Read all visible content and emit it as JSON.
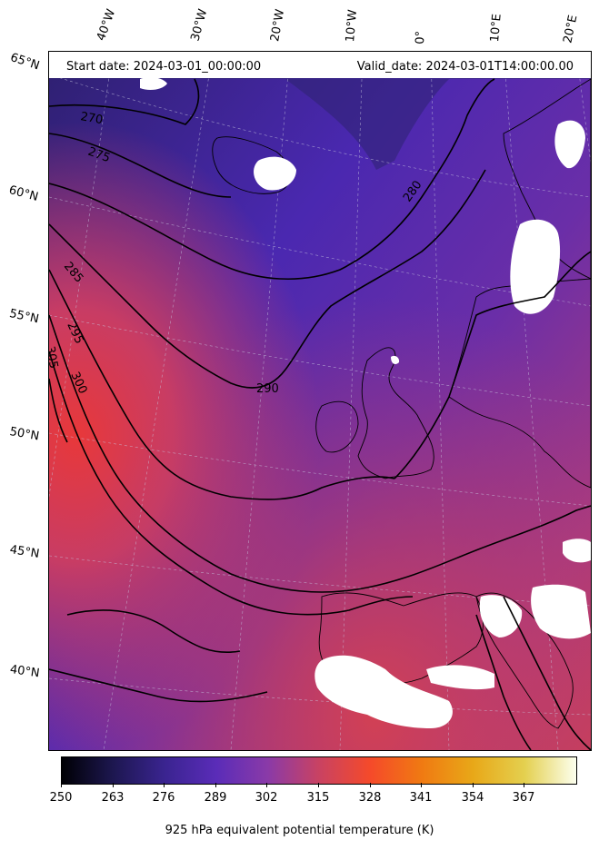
{
  "header": {
    "start_date": "Start date: 2024-03-01_00:00:00",
    "valid_date": "Valid_date: 2024-03-01T14:00:00.00"
  },
  "latitude_labels": [
    "65°N",
    "60°N",
    "55°N",
    "50°N",
    "45°N",
    "40°N"
  ],
  "longitude_labels": [
    "40°W",
    "30°W",
    "20°W",
    "10°W",
    "0°",
    "10°E",
    "20°E"
  ],
  "contour_labels": [
    "270",
    "275",
    "280",
    "285",
    "290",
    "295",
    "300",
    "305"
  ],
  "colorbar": {
    "ticks": [
      "250",
      "263",
      "276",
      "289",
      "302",
      "315",
      "328",
      "341",
      "354",
      "367"
    ],
    "title": "925 hPa equivalent potential temperature (K)"
  },
  "colors": {
    "cold": "#2e2070",
    "mid": "#5a2cb8",
    "warm": "#c94262",
    "hot": "#f03a30",
    "masked": "#ffffff"
  }
}
